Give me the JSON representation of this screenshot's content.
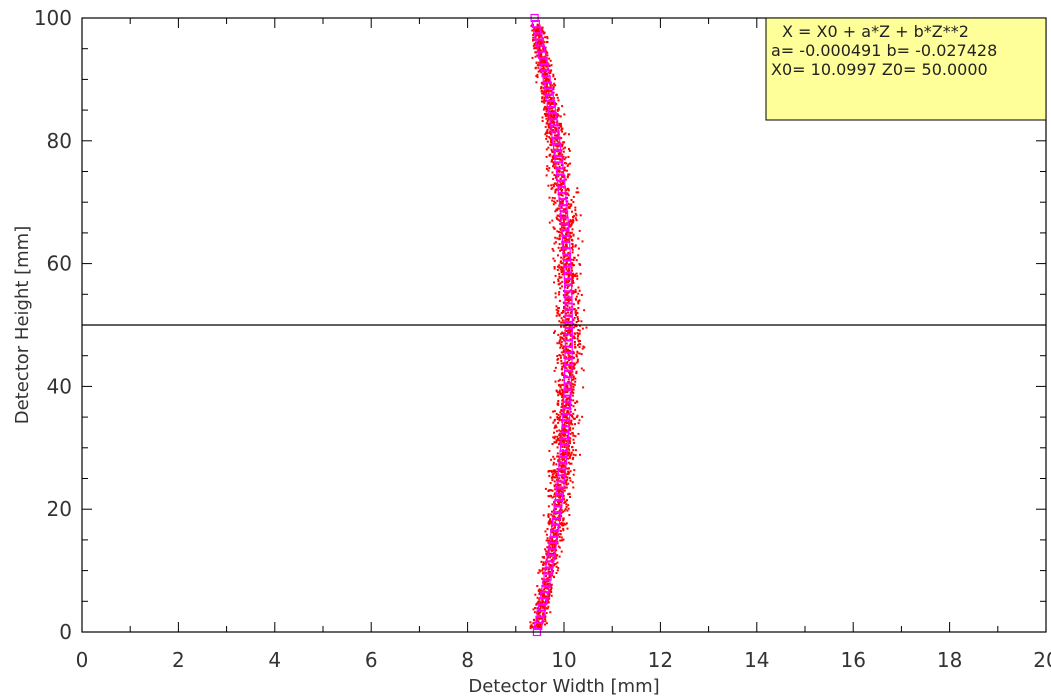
{
  "chart_data": {
    "type": "scatter",
    "xlabel": "Detector Width [mm]",
    "ylabel": "Detector Height [mm]",
    "xlim": [
      0,
      20
    ],
    "ylim": [
      0,
      100
    ],
    "x_ticks": [
      "0",
      "2",
      "4",
      "6",
      "8",
      "10",
      "12",
      "14",
      "16",
      "18",
      "20"
    ],
    "y_ticks": [
      "0",
      "20",
      "40",
      "60",
      "80",
      "100"
    ],
    "grid": false,
    "reference_line_y": 50,
    "fit": {
      "formula": "X = X0 + a*Z + b*Z**2",
      "params_line": "a= -0.000491 b= -0.027428",
      "origin_line": "X0= 10.0997 Z0= 50.0000",
      "a": -0.000491,
      "b": -0.027428,
      "X0": 10.0997,
      "Z0": 50.0,
      "box_placement": "top-right",
      "box_color": "#ffff99"
    },
    "series": [
      {
        "kind": "scatter-band",
        "color": "#ff0000",
        "x_spread": 0.45
      },
      {
        "kind": "fit-markers",
        "color": "#ff00ff"
      }
    ],
    "colors": {
      "axis": "#000000",
      "text": "#333333",
      "scatter": "#ff0000",
      "fit": "#ff00ff"
    }
  }
}
